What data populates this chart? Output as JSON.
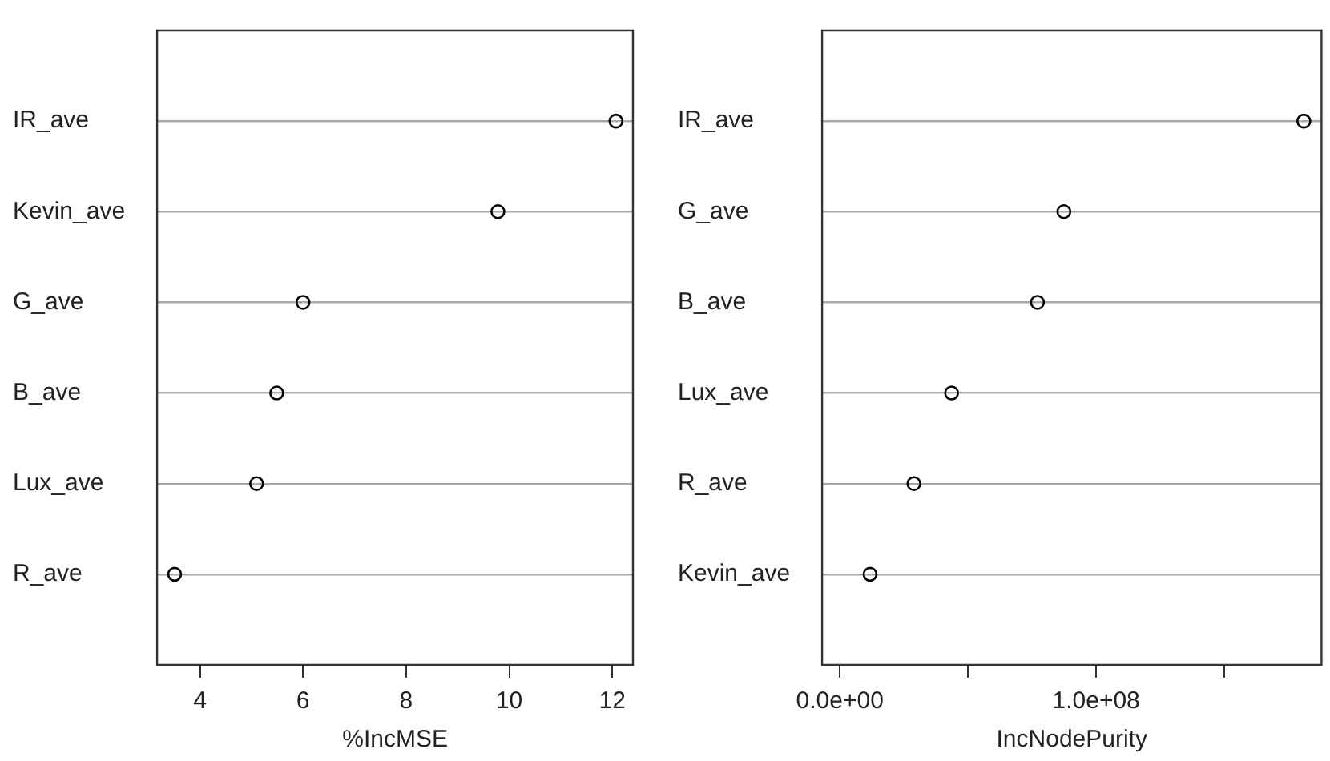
{
  "chart_data": [
    {
      "type": "scatter",
      "orientation": "horizontal",
      "categories": [
        "IR_ave",
        "Kevin_ave",
        "G_ave",
        "B_ave",
        "Lux_ave",
        "R_ave"
      ],
      "series": [
        {
          "color": "#000000",
          "values": [
            12.07,
            9.78,
            6.0,
            5.49,
            5.1,
            3.51
          ]
        }
      ],
      "xlabel": "%IncMSE",
      "xlim": [
        3.17,
        12.4
      ],
      "xticks": [
        4,
        6,
        8,
        10,
        12
      ],
      "grid": "y",
      "marker": "circle",
      "legend": false
    },
    {
      "type": "scatter",
      "orientation": "horizontal",
      "categories": [
        "IR_ave",
        "G_ave",
        "B_ave",
        "Lux_ave",
        "R_ave",
        "Kevin_ave"
      ],
      "series": [
        {
          "color": "#000000",
          "values": [
            181000000,
            87400000,
            77100000,
            43600000,
            28900000,
            11800000
          ]
        }
      ],
      "xlabel": "IncNodePurity",
      "xlim": [
        -6900000,
        187900000
      ],
      "xticks": [
        {
          "value": 0,
          "label": "0.0e+00"
        },
        {
          "value": 50000000,
          "label": null
        },
        {
          "value": 100000000,
          "label": "1.0e+08"
        },
        {
          "value": 150000000,
          "label": null
        }
      ],
      "grid": "y",
      "marker": "circle",
      "legend": false
    }
  ]
}
